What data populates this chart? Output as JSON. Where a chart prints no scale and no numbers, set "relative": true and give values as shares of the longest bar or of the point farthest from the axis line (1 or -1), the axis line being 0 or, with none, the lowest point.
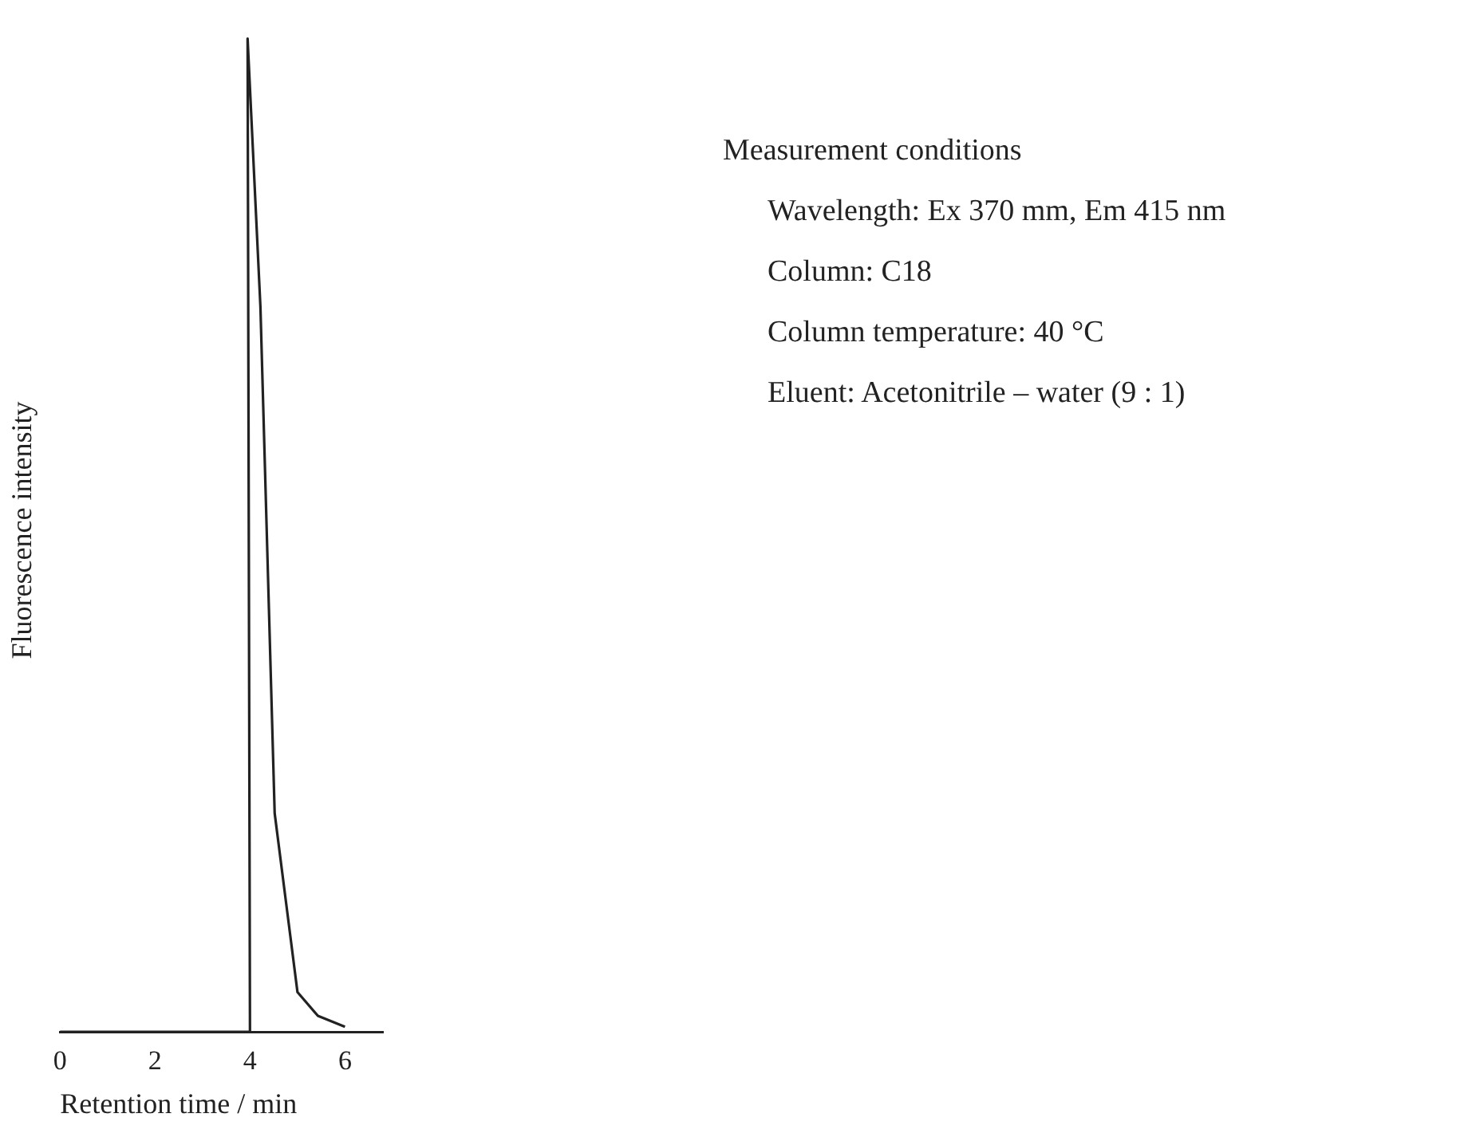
{
  "chart_data": {
    "type": "line",
    "relative": true,
    "xlabel": "Retention time / min",
    "ylabel": "Fluorescence intensity",
    "x": [
      0,
      4,
      3.95,
      4.22,
      4.52,
      4.76,
      5.0,
      5.43,
      6.0
    ],
    "series": [
      {
        "color": "#222222",
        "values": [
          0,
          0,
          1,
          0.73,
          0.22,
          0.13,
          0.04,
          0.016,
          0.005
        ]
      }
    ],
    "xlim": [
      0,
      6.8
    ],
    "xticks": [
      0,
      2,
      4,
      6
    ],
    "grid": false,
    "legend": false,
    "marker": "none",
    "line_style": "solid",
    "annotations": [
      "Measurement conditions",
      "Wavelength: Ex 370 mm, Em 415 nm",
      "Column: C18",
      "Column temperature: 40 °C",
      "Eluent: Acetonitrile – water (9 : 1)"
    ]
  }
}
